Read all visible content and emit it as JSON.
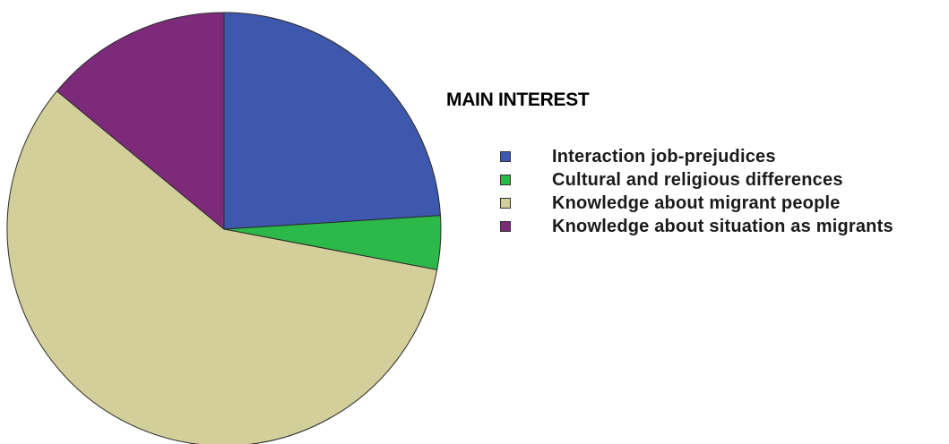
{
  "chart_data": {
    "type": "pie",
    "title": "MAIN INTEREST",
    "legend_position": "right",
    "categories": [
      "Interaction job-prejudices",
      "Cultural and religious differences",
      "Knowledge about migrant people",
      "Knowledge about situation as migrants"
    ],
    "values": [
      24,
      4,
      58,
      14
    ],
    "colors": [
      "#3e58ad",
      "#2db84a",
      "#d3cf9a",
      "#7d2a7b"
    ],
    "start_angle": "12 o'clock",
    "direction": "clockwise"
  }
}
